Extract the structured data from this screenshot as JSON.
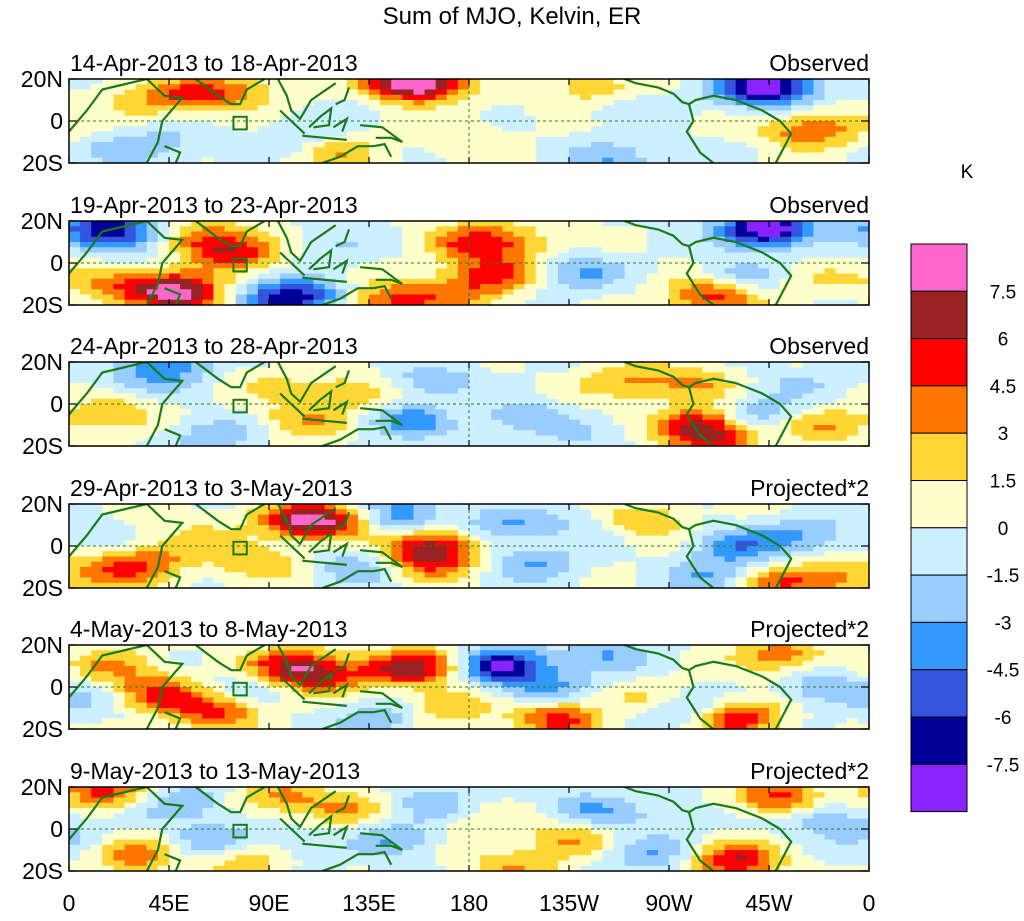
{
  "chart_data": {
    "type": "heatmap",
    "title": "Sum of MJO, Kelvin, ER",
    "unit": "K",
    "x_ticks": [
      "0",
      "45E",
      "90E",
      "135E",
      "180",
      "135W",
      "90W",
      "45W",
      "0"
    ],
    "y_ticks": [
      "20N",
      "0",
      "20S"
    ],
    "ylim": [
      -20,
      20
    ],
    "panels": [
      {
        "dates": "14-Apr-2013 to 18-Apr-2013",
        "kind": "Observed",
        "blobs": [
          [
            55,
            12,
            4
          ],
          [
            30,
            10,
            2
          ],
          [
            78,
            14,
            3
          ],
          [
            150,
            18,
            6
          ],
          [
            160,
            17,
            5
          ],
          [
            120,
            -15,
            3
          ],
          [
            105,
            -8,
            -2
          ],
          [
            25,
            -14,
            -2
          ],
          [
            45,
            -10,
            -1.5
          ],
          [
            245,
            -18,
            -3
          ],
          [
            235,
            15,
            3
          ],
          [
            250,
            8,
            -1.5
          ],
          [
            310,
            17,
            -6
          ],
          [
            320,
            15,
            -4
          ],
          [
            330,
            -5,
            3
          ],
          [
            342,
            -3,
            2
          ],
          [
            135,
            10,
            -1
          ],
          [
            175,
            -8,
            1.5
          ]
        ]
      },
      {
        "dates": "19-Apr-2013 to 23-Apr-2013",
        "kind": "Observed",
        "blobs": [
          [
            15,
            17,
            -6
          ],
          [
            30,
            12,
            -3
          ],
          [
            60,
            12,
            4
          ],
          [
            75,
            5,
            5
          ],
          [
            45,
            -12,
            6
          ],
          [
            55,
            -18,
            4
          ],
          [
            95,
            -18,
            -6
          ],
          [
            110,
            -15,
            -3
          ],
          [
            145,
            -18,
            5
          ],
          [
            175,
            -15,
            3
          ],
          [
            180,
            10,
            4
          ],
          [
            200,
            10,
            3
          ],
          [
            190,
            -5,
            5
          ],
          [
            230,
            -5,
            -3
          ],
          [
            290,
            -15,
            6
          ],
          [
            300,
            -8,
            -3
          ],
          [
            310,
            15,
            -6
          ],
          [
            320,
            18,
            -4
          ],
          [
            20,
            -10,
            3
          ],
          [
            335,
            -8,
            1.5
          ],
          [
            120,
            8,
            -1.5
          ]
        ]
      },
      {
        "dates": "24-Apr-2013 to 28-Apr-2013",
        "kind": "Observed",
        "blobs": [
          [
            45,
            18,
            -4
          ],
          [
            20,
            -5,
            3
          ],
          [
            65,
            -15,
            -3
          ],
          [
            30,
            10,
            -1.5
          ],
          [
            90,
            10,
            1.5
          ],
          [
            105,
            -8,
            3
          ],
          [
            125,
            5,
            3
          ],
          [
            155,
            -8,
            -4
          ],
          [
            165,
            10,
            -3
          ],
          [
            180,
            0,
            1.5
          ],
          [
            200,
            -5,
            -3
          ],
          [
            250,
            10,
            3
          ],
          [
            280,
            10,
            3
          ],
          [
            285,
            -10,
            6
          ],
          [
            290,
            -18,
            4
          ],
          [
            310,
            -5,
            -3
          ],
          [
            330,
            10,
            -1.5
          ],
          [
            340,
            -10,
            3
          ],
          [
            230,
            -15,
            -1.5
          ]
        ]
      },
      {
        "dates": "29-Apr-2013 to 3-May-2013",
        "kind": "Projected*2",
        "blobs": [
          [
            105,
            12,
            6
          ],
          [
            120,
            12,
            4
          ],
          [
            165,
            0,
            6
          ],
          [
            160,
            -8,
            4
          ],
          [
            150,
            15,
            -4
          ],
          [
            195,
            10,
            -3
          ],
          [
            210,
            -8,
            -3
          ],
          [
            230,
            10,
            -1.5
          ],
          [
            260,
            12,
            3
          ],
          [
            300,
            0,
            -4
          ],
          [
            330,
            5,
            -3
          ],
          [
            290,
            -15,
            -3
          ],
          [
            320,
            -18,
            4
          ],
          [
            20,
            -12,
            4
          ],
          [
            40,
            -5,
            3
          ],
          [
            10,
            5,
            -1.5
          ],
          [
            60,
            8,
            1.5
          ],
          [
            85,
            -8,
            3
          ],
          [
            345,
            -15,
            3
          ],
          [
            130,
            -10,
            -3
          ]
        ]
      },
      {
        "dates": "4-May-2013 to 8-May-2013",
        "kind": "Projected*2",
        "blobs": [
          [
            40,
            -3,
            5
          ],
          [
            65,
            -12,
            5
          ],
          [
            100,
            10,
            6
          ],
          [
            115,
            5,
            4
          ],
          [
            145,
            8,
            3
          ],
          [
            160,
            10,
            5
          ],
          [
            170,
            -10,
            3
          ],
          [
            195,
            10,
            -7.5
          ],
          [
            215,
            0,
            -3
          ],
          [
            220,
            -15,
            5
          ],
          [
            240,
            15,
            -3
          ],
          [
            300,
            -15,
            6
          ],
          [
            320,
            15,
            4
          ],
          [
            340,
            0,
            -3
          ],
          [
            20,
            10,
            3
          ],
          [
            140,
            -15,
            -3
          ],
          [
            280,
            -12,
            -3
          ],
          [
            260,
            -5,
            1.5
          ],
          [
            80,
            0,
            -1.5
          ],
          [
            10,
            -8,
            -1.5
          ]
        ]
      },
      {
        "dates": "9-May-2013 to 13-May-2013",
        "kind": "Projected*2",
        "blobs": [
          [
            15,
            18,
            5
          ],
          [
            30,
            -12,
            4
          ],
          [
            50,
            12,
            -3
          ],
          [
            65,
            -5,
            -3
          ],
          [
            80,
            -15,
            3
          ],
          [
            95,
            15,
            3
          ],
          [
            125,
            10,
            3
          ],
          [
            145,
            -5,
            -3
          ],
          [
            165,
            12,
            -3
          ],
          [
            200,
            -18,
            3
          ],
          [
            225,
            -5,
            3
          ],
          [
            235,
            10,
            -3
          ],
          [
            260,
            -12,
            -3
          ],
          [
            270,
            5,
            -1.5
          ],
          [
            300,
            -15,
            6
          ],
          [
            320,
            15,
            5
          ],
          [
            340,
            5,
            -3
          ],
          [
            100,
            -10,
            -1.5
          ],
          [
            180,
            5,
            1.5
          ],
          [
            5,
            -5,
            -1.5
          ]
        ]
      }
    ],
    "colorbar": {
      "labels": [
        "7.5",
        "6",
        "4.5",
        "3",
        "1.5",
        "0",
        "-1.5",
        "-3",
        "-4.5",
        "-6",
        "-7.5"
      ],
      "levels": [
        9,
        7.5,
        6,
        4.5,
        3,
        1.5,
        0,
        -1.5,
        -3,
        -4.5,
        -6,
        -7.5
      ],
      "colors": [
        "#ff66cc",
        "#992222",
        "#ff0000",
        "#ff7700",
        "#ffd633",
        "#ffffcc",
        "#ccf0ff",
        "#99ccff",
        "#3399ff",
        "#3355dd",
        "#000099",
        "#8822ff"
      ]
    }
  }
}
